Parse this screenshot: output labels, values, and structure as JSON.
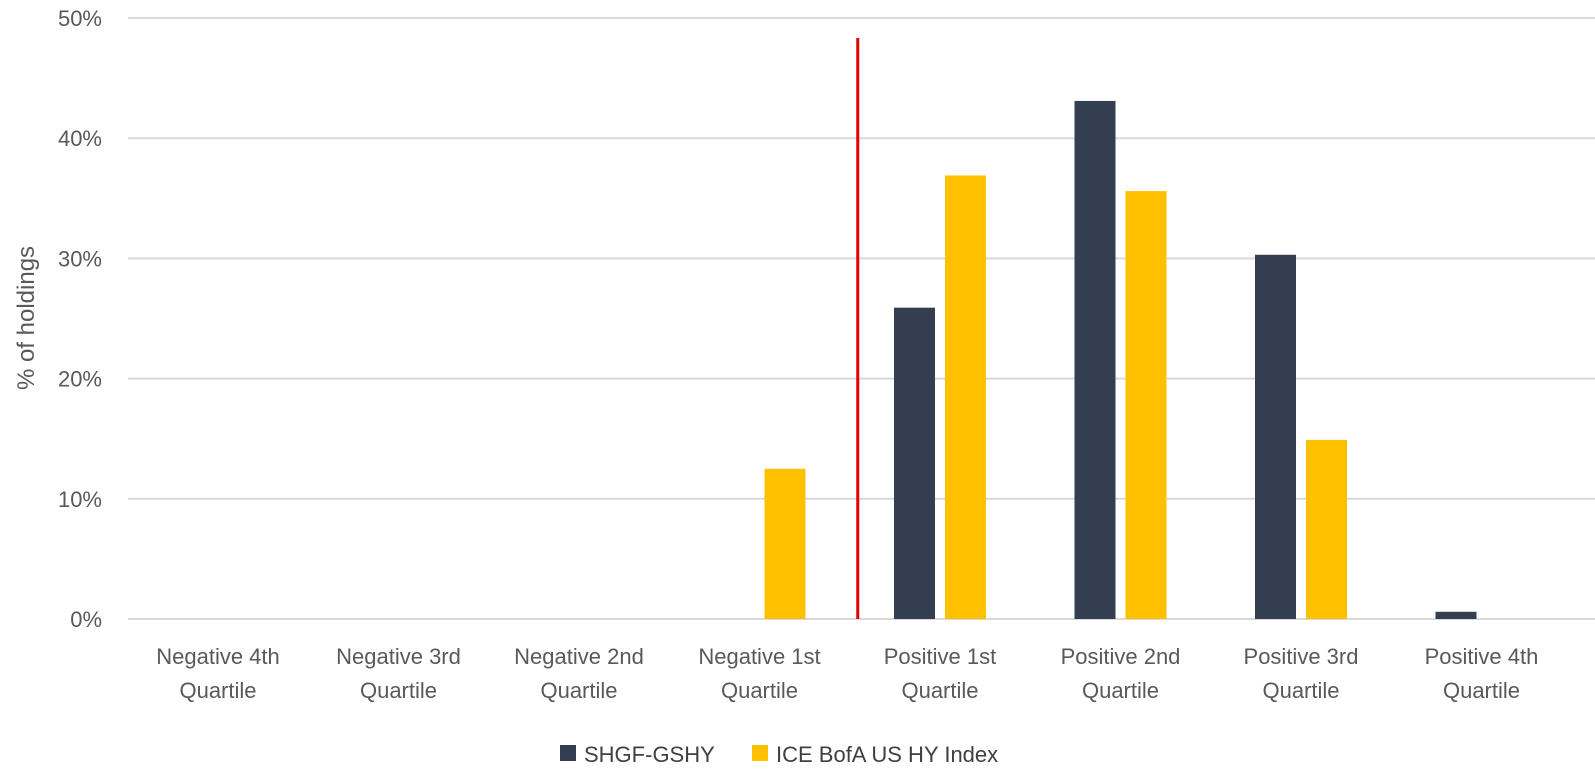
{
  "chart_data": {
    "type": "bar",
    "title": "",
    "xlabel": "",
    "ylabel": "% of holdings",
    "ylim": [
      0,
      50
    ],
    "yticks": [
      0,
      10,
      20,
      30,
      40,
      50
    ],
    "ytick_labels": [
      "0%",
      "10%",
      "20%",
      "30%",
      "40%",
      "50%"
    ],
    "grid": true,
    "legend": "bottom",
    "categories": [
      [
        "Negative 4th",
        "Quartile"
      ],
      [
        "Negative 3rd",
        "Quartile"
      ],
      [
        "Negative 2nd",
        "Quartile"
      ],
      [
        "Negative 1st",
        "Quartile"
      ],
      [
        "Positive 1st",
        "Quartile"
      ],
      [
        "Positive 2nd",
        "Quartile"
      ],
      [
        "Positive 3rd",
        "Quartile"
      ],
      [
        "Positive 4th",
        "Quartile"
      ]
    ],
    "series": [
      {
        "name": "SHGF-GSHY",
        "color": "#333f50",
        "values": [
          0,
          0,
          0,
          0,
          25.9,
          43.1,
          30.3,
          0.6
        ]
      },
      {
        "name": "ICE BofA US HY Index",
        "color": "#ffc000",
        "values": [
          0,
          0,
          0,
          12.5,
          36.9,
          35.6,
          14.9,
          0
        ]
      }
    ],
    "divider": {
      "between_categories": [
        3,
        4
      ],
      "color": "#e00000"
    }
  }
}
